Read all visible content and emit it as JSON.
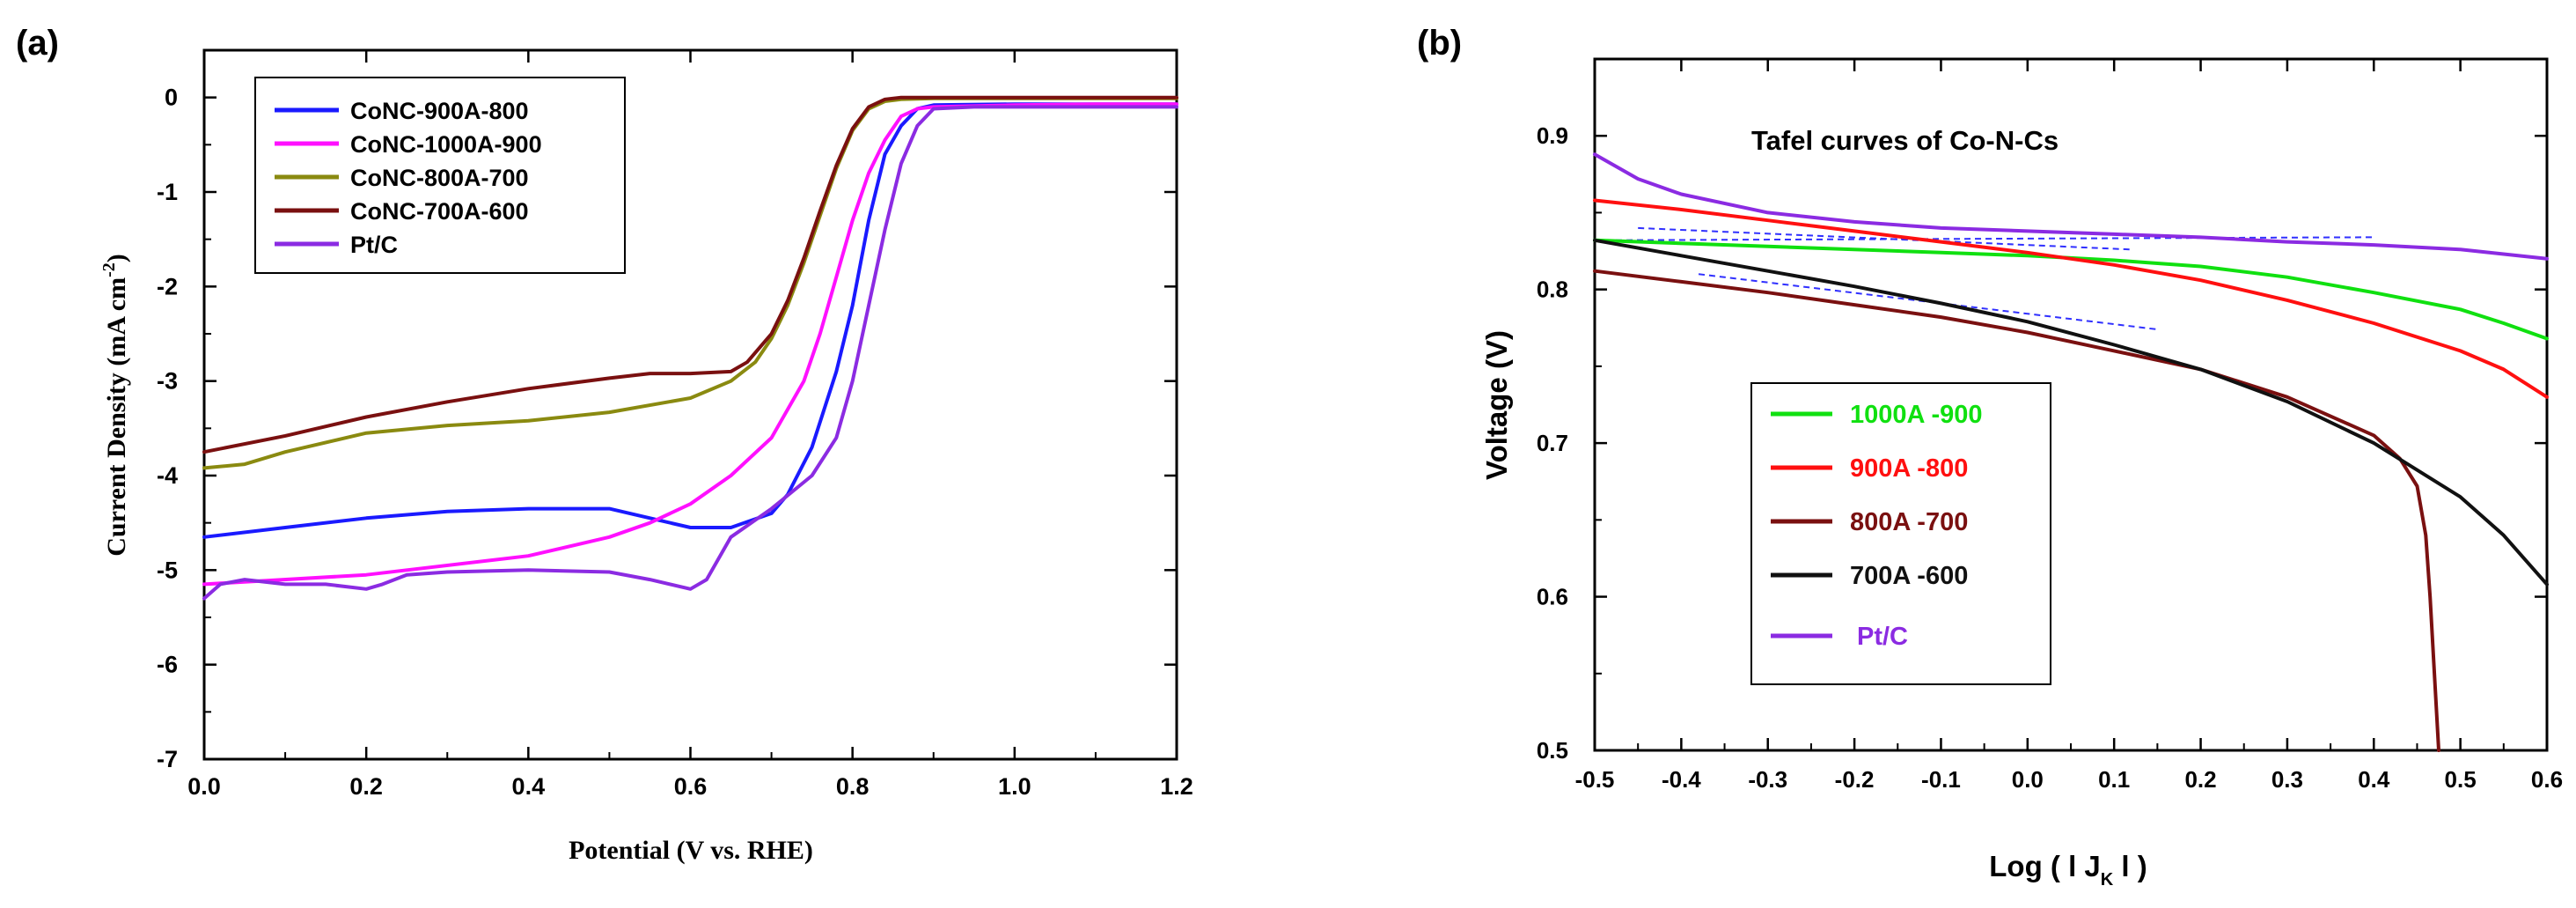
{
  "chart_data": [
    {
      "panel_label": "(a)",
      "type": "line",
      "title": "",
      "xlabel": "Potential (V vs. RHE)",
      "ylabel_main": "Current Density (mA cm",
      "ylabel_sup": "-2",
      "ylabel_close": ")",
      "xlim": [
        0.0,
        1.2
      ],
      "ylim": [
        -7,
        0.5
      ],
      "xticks": [
        0.0,
        0.2,
        0.4,
        0.6,
        0.8,
        1.0,
        1.2
      ],
      "xtick_labels": [
        "0.0",
        "0.2",
        "0.4",
        "0.6",
        "0.8",
        "1.0",
        "1.2"
      ],
      "yticks": [
        0,
        -1,
        -2,
        -3,
        -4,
        -5,
        -6,
        -7
      ],
      "ytick_labels": [
        "0",
        "-1",
        "-2",
        "-3",
        "-4",
        "-5",
        "-6",
        "-7"
      ],
      "legend_position": "top-left",
      "series": [
        {
          "name": "CoNC-900A-800",
          "color": "#1a1aff",
          "x": [
            0.0,
            0.1,
            0.2,
            0.3,
            0.4,
            0.5,
            0.55,
            0.6,
            0.65,
            0.7,
            0.72,
            0.75,
            0.78,
            0.8,
            0.82,
            0.84,
            0.86,
            0.88,
            0.9,
            1.0,
            1.1,
            1.2
          ],
          "y": [
            -4.65,
            -4.55,
            -4.45,
            -4.38,
            -4.35,
            -4.35,
            -4.45,
            -4.55,
            -4.55,
            -4.4,
            -4.2,
            -3.7,
            -2.9,
            -2.2,
            -1.3,
            -0.6,
            -0.3,
            -0.12,
            -0.08,
            -0.07,
            -0.07,
            -0.07
          ]
        },
        {
          "name": "CoNC-1000A-900",
          "color": "#ff10ff",
          "x": [
            0.0,
            0.2,
            0.4,
            0.5,
            0.55,
            0.6,
            0.65,
            0.7,
            0.72,
            0.74,
            0.76,
            0.78,
            0.8,
            0.82,
            0.84,
            0.86,
            0.88,
            0.9,
            1.0,
            1.1,
            1.2
          ],
          "y": [
            -5.15,
            -5.05,
            -4.85,
            -4.65,
            -4.5,
            -4.3,
            -4.0,
            -3.6,
            -3.3,
            -3.0,
            -2.5,
            -1.9,
            -1.3,
            -0.8,
            -0.45,
            -0.2,
            -0.12,
            -0.1,
            -0.08,
            -0.07,
            -0.07
          ]
        },
        {
          "name": "CoNC-800A-700",
          "color": "#8a8a10",
          "x": [
            0.0,
            0.05,
            0.1,
            0.2,
            0.3,
            0.4,
            0.5,
            0.6,
            0.65,
            0.68,
            0.7,
            0.72,
            0.74,
            0.76,
            0.78,
            0.8,
            0.82,
            0.84,
            0.86,
            0.9,
            1.0,
            1.2
          ],
          "y": [
            -3.92,
            -3.88,
            -3.75,
            -3.55,
            -3.47,
            -3.42,
            -3.33,
            -3.18,
            -3.0,
            -2.8,
            -2.55,
            -2.2,
            -1.75,
            -1.25,
            -0.75,
            -0.35,
            -0.12,
            -0.04,
            -0.02,
            -0.01,
            -0.01,
            -0.01
          ]
        },
        {
          "name": "CoNC-700A-600",
          "color": "#7a1010",
          "x": [
            0.0,
            0.1,
            0.2,
            0.3,
            0.4,
            0.5,
            0.55,
            0.6,
            0.65,
            0.67,
            0.7,
            0.72,
            0.74,
            0.76,
            0.78,
            0.8,
            0.82,
            0.84,
            0.86,
            0.9,
            1.0,
            1.2
          ],
          "y": [
            -3.75,
            -3.58,
            -3.38,
            -3.22,
            -3.08,
            -2.97,
            -2.92,
            -2.92,
            -2.9,
            -2.8,
            -2.5,
            -2.15,
            -1.7,
            -1.2,
            -0.72,
            -0.33,
            -0.1,
            -0.02,
            0.0,
            0.0,
            0.0,
            0.0
          ]
        },
        {
          "name": "Pt/C",
          "color": "#8b2be2",
          "x": [
            0.0,
            0.02,
            0.05,
            0.1,
            0.15,
            0.2,
            0.22,
            0.25,
            0.3,
            0.4,
            0.5,
            0.55,
            0.6,
            0.62,
            0.65,
            0.7,
            0.75,
            0.78,
            0.8,
            0.82,
            0.84,
            0.86,
            0.88,
            0.9,
            0.95,
            1.0,
            1.2
          ],
          "y": [
            -5.3,
            -5.15,
            -5.1,
            -5.15,
            -5.15,
            -5.2,
            -5.15,
            -5.05,
            -5.02,
            -5.0,
            -5.02,
            -5.1,
            -5.2,
            -5.1,
            -4.65,
            -4.35,
            -4.0,
            -3.6,
            -3.0,
            -2.2,
            -1.4,
            -0.7,
            -0.3,
            -0.12,
            -0.1,
            -0.1,
            -0.1
          ]
        }
      ]
    },
    {
      "panel_label": "(b)",
      "type": "line",
      "title": "Tafel curves of Co-N-Cs",
      "xlabel_main": "Log ( l J",
      "xlabel_sub": "K",
      "xlabel_close": " l )",
      "ylabel": "Voltage (V)",
      "xlim": [
        -0.5,
        0.6
      ],
      "ylim": [
        0.5,
        0.95
      ],
      "xticks": [
        -0.5,
        -0.4,
        -0.3,
        -0.2,
        -0.1,
        0.0,
        0.1,
        0.2,
        0.3,
        0.4,
        0.5,
        0.6
      ],
      "xtick_labels": [
        "-0.5",
        "-0.4",
        "-0.3",
        "-0.2",
        "-0.1",
        "0.0",
        "0.1",
        "0.2",
        "0.3",
        "0.4",
        "0.5",
        "0.6"
      ],
      "yticks": [
        0.5,
        0.6,
        0.7,
        0.8,
        0.9
      ],
      "ytick_labels": [
        "0.5",
        "0.6",
        "0.7",
        "0.8",
        "0.9"
      ],
      "legend_position": "center-left",
      "series": [
        {
          "name": "1000A -900",
          "color": "#10e010",
          "x": [
            -0.5,
            -0.3,
            -0.1,
            0.0,
            0.1,
            0.2,
            0.3,
            0.4,
            0.5,
            0.55,
            0.6
          ],
          "y": [
            0.832,
            0.828,
            0.824,
            0.822,
            0.819,
            0.815,
            0.808,
            0.798,
            0.787,
            0.778,
            0.768
          ]
        },
        {
          "name": "900A -800",
          "color": "#ff1010",
          "x": [
            -0.5,
            -0.4,
            -0.3,
            -0.2,
            -0.1,
            0.0,
            0.1,
            0.2,
            0.3,
            0.4,
            0.5,
            0.55,
            0.6
          ],
          "y": [
            0.858,
            0.852,
            0.845,
            0.838,
            0.831,
            0.824,
            0.816,
            0.806,
            0.793,
            0.778,
            0.76,
            0.748,
            0.73
          ]
        },
        {
          "name": "800A -700",
          "color": "#7a1010",
          "x": [
            -0.5,
            -0.4,
            -0.3,
            -0.2,
            -0.1,
            0.0,
            0.1,
            0.2,
            0.3,
            0.4,
            0.43,
            0.45,
            0.46,
            0.465,
            0.47,
            0.475
          ],
          "y": [
            0.812,
            0.805,
            0.798,
            0.79,
            0.782,
            0.772,
            0.76,
            0.748,
            0.73,
            0.705,
            0.69,
            0.672,
            0.64,
            0.6,
            0.55,
            0.5
          ]
        },
        {
          "name": "700A -600",
          "color": "#111111",
          "x": [
            -0.5,
            -0.4,
            -0.3,
            -0.2,
            -0.1,
            0.0,
            0.1,
            0.2,
            0.3,
            0.4,
            0.5,
            0.55,
            0.6
          ],
          "y": [
            0.832,
            0.822,
            0.812,
            0.802,
            0.791,
            0.779,
            0.764,
            0.748,
            0.727,
            0.7,
            0.665,
            0.64,
            0.608
          ]
        },
        {
          "name": "Pt/C",
          "color": "#8b2be2",
          "x": [
            -0.5,
            -0.45,
            -0.4,
            -0.3,
            -0.2,
            -0.1,
            0.0,
            0.1,
            0.2,
            0.3,
            0.4,
            0.5,
            0.6
          ],
          "y": [
            0.888,
            0.872,
            0.862,
            0.85,
            0.844,
            0.84,
            0.838,
            0.836,
            0.834,
            0.831,
            0.829,
            0.826,
            0.82
          ]
        }
      ],
      "fit_lines": [
        {
          "color": "#3030ff",
          "x": [
            -0.5,
            0.4
          ],
          "y": [
            0.832,
            0.834
          ]
        },
        {
          "color": "#3030ff",
          "x": [
            -0.45,
            0.12
          ],
          "y": [
            0.84,
            0.826
          ]
        },
        {
          "color": "#3030ff",
          "x": [
            -0.38,
            0.15
          ],
          "y": [
            0.81,
            0.774
          ]
        }
      ]
    }
  ]
}
